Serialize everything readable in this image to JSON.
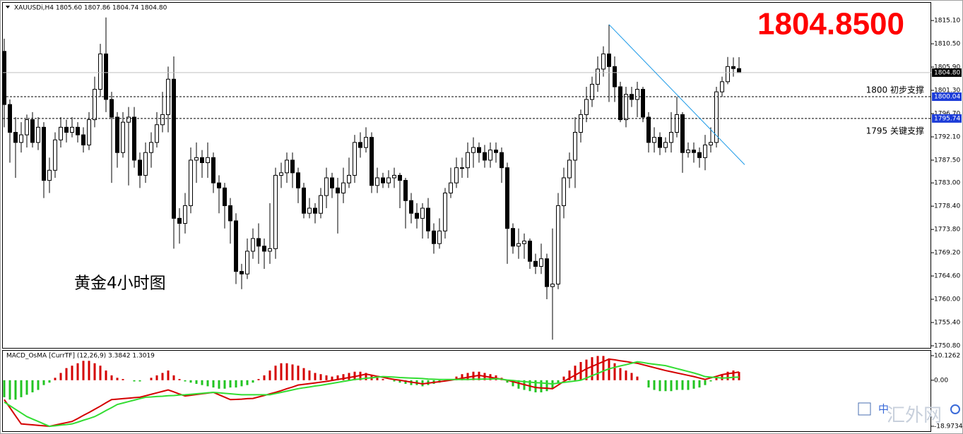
{
  "chart_data": [
    {
      "type": "candlestick",
      "title": "XAUUSDi,H4  1805.60 1807.86 1804.74 1804.80",
      "price_label": "1804.8500",
      "caption": "黄金4小时图",
      "up_color": "#ffffff",
      "down_color": "#000000",
      "ylim": [
        1750.38,
        1818.74
      ],
      "yticks": [
        {
          "value": 1815.1,
          "label": "1815.10"
        },
        {
          "value": 1810.5,
          "label": "1810.50"
        },
        {
          "value": 1805.9,
          "label": "1805.90"
        },
        {
          "value": 1801.3,
          "label": "1801.30"
        },
        {
          "value": 1796.7,
          "label": "1796.70"
        },
        {
          "value": 1792.1,
          "label": "1792.10"
        },
        {
          "value": 1787.5,
          "label": "1787.50"
        },
        {
          "value": 1783,
          "label": "1783.00"
        },
        {
          "value": 1778.4,
          "label": "1778.40"
        },
        {
          "value": 1773.8,
          "label": "1773.80"
        },
        {
          "value": 1769.2,
          "label": "1769.20"
        },
        {
          "value": 1764.6,
          "label": "1764.60"
        },
        {
          "value": 1760,
          "label": "1760.00"
        },
        {
          "value": 1755.4,
          "label": "1755.40"
        },
        {
          "value": 1750.8,
          "label": "1750.80"
        }
      ],
      "levels": [
        {
          "value": 1804.8,
          "label": "1804.80",
          "style": "solid",
          "color": "#c0c0c0",
          "box": "#000000"
        },
        {
          "value": 1800.04,
          "label": "1800.04",
          "style": "dashed",
          "color": "#000000",
          "box": "#1c3cd8",
          "text": "1800 初步支撑"
        },
        {
          "value": 1795.74,
          "label": "1795.74",
          "style": "dashed",
          "color": "#000000",
          "box": "#1c3cd8",
          "text": "1795 关键支撑"
        }
      ],
      "trendline": {
        "x": [
          107,
          131
        ],
        "y": [
          1814.3,
          1786.6
        ],
        "color": "#1e9be8"
      },
      "open": [
        1809.0,
        1798.5,
        1793.0,
        1791.0,
        1792.5,
        1795.5,
        1791.0,
        1794.0,
        1783.5,
        1785.5,
        1791.5,
        1794.0,
        1793.0,
        1794.0,
        1792.5,
        1790.5,
        1795.5,
        1801.5,
        1808.5,
        1799.5,
        1796.0,
        1789.0,
        1795.0,
        1796.0,
        1787.5,
        1784.5,
        1789.0,
        1791.0,
        1794.5,
        1796.5,
        1803.5,
        1776.0,
        1775.0,
        1778.5,
        1787.5,
        1788.0,
        1787.0,
        1788.0,
        1783.0,
        1782.0,
        1778.5,
        1775.5,
        1765.5,
        1765.0,
        1769.5,
        1772.0,
        1770.5,
        1769.5,
        1770.0,
        1784.5,
        1785.0,
        1787.5,
        1785.0,
        1782.0,
        1777.0,
        1778.0,
        1777.0,
        1780.5,
        1784.0,
        1782.0,
        1781.0,
        1783.0,
        1784.5,
        1791.0,
        1790.0,
        1792.0,
        1782.5,
        1784.0,
        1783.0,
        1784.0,
        1784.5,
        1783.5,
        1779.5,
        1777.0,
        1776.0,
        1778.0,
        1773.5,
        1771.0,
        1773.5,
        1781.0,
        1783.0,
        1786.0,
        1786.0,
        1789.0,
        1790.0,
        1789.0,
        1787.5,
        1789.5,
        1789.0,
        1786.0,
        1774.0,
        1770.5,
        1771.0,
        1771.5,
        1767.5,
        1766.5,
        1768.0,
        1762.5,
        1763.0,
        1778.5,
        1784.0,
        1787.5,
        1793.0,
        1796.5,
        1799.5,
        1802.5,
        1805.5,
        1808.5,
        1806.0,
        1802.0,
        1795.5,
        1800.5,
        1799.5,
        1801.5,
        1796.0,
        1791.0,
        1792.0,
        1790.0,
        1791.0,
        1793.0,
        1796.5,
        1789.0,
        1789.5,
        1789.0,
        1788.0,
        1790.5,
        1791.0,
        1801.0,
        1803.0,
        1806.0,
        1805.6
      ],
      "high": [
        1811.5,
        1799.5,
        1796,
        1795,
        1796.5,
        1797,
        1796,
        1795,
        1788,
        1793,
        1796,
        1795.5,
        1796,
        1795,
        1794,
        1797,
        1804,
        1810.5,
        1815.7,
        1801,
        1797,
        1797,
        1798,
        1798,
        1789,
        1791,
        1793,
        1797,
        1801,
        1806,
        1808,
        1778,
        1781,
        1790,
        1791,
        1789.5,
        1791,
        1789,
        1784.5,
        1783,
        1780,
        1777,
        1767,
        1772,
        1774,
        1775,
        1772,
        1779,
        1786,
        1787,
        1789,
        1789,
        1786,
        1783,
        1780,
        1779,
        1782,
        1786,
        1785,
        1784,
        1786,
        1788,
        1792.5,
        1793,
        1794,
        1793,
        1786,
        1785,
        1785.5,
        1786,
        1785,
        1784,
        1781,
        1779,
        1779,
        1780,
        1775,
        1776,
        1782,
        1786,
        1788,
        1788,
        1791,
        1792,
        1791,
        1790.5,
        1791,
        1791,
        1790,
        1787,
        1775,
        1774,
        1773,
        1772,
        1769,
        1771,
        1769,
        1774,
        1781,
        1786,
        1789,
        1796,
        1797.5,
        1802,
        1804,
        1808,
        1810,
        1814.3,
        1808,
        1803,
        1802,
        1802,
        1803,
        1802,
        1797,
        1794,
        1793,
        1792,
        1797,
        1800,
        1797,
        1791,
        1791,
        1790,
        1792.5,
        1794,
        1802,
        1804,
        1807.9,
        1807.8,
        1807.86
      ],
      "low": [
        1794,
        1787,
        1784,
        1789,
        1790,
        1790,
        1789.5,
        1780,
        1781,
        1784,
        1790,
        1791,
        1792,
        1791,
        1789,
        1789.5,
        1794,
        1800,
        1797,
        1783,
        1786,
        1788,
        1782.5,
        1786,
        1782,
        1783,
        1786,
        1790,
        1793,
        1793,
        1770,
        1771,
        1773,
        1777,
        1783,
        1784,
        1784,
        1781,
        1777,
        1774,
        1771,
        1763,
        1762,
        1764,
        1768,
        1767,
        1766,
        1767,
        1768,
        1782,
        1783,
        1782,
        1779,
        1776,
        1776,
        1775,
        1776,
        1778,
        1780,
        1773,
        1779,
        1782,
        1783,
        1788,
        1789,
        1781,
        1781,
        1782,
        1782,
        1782,
        1778,
        1774,
        1775,
        1774,
        1772,
        1772,
        1769,
        1770,
        1772,
        1780,
        1782,
        1784,
        1784,
        1786,
        1787,
        1786,
        1786,
        1787,
        1783,
        1767,
        1769,
        1768,
        1768,
        1766,
        1765,
        1765,
        1760,
        1752,
        1762,
        1776,
        1782,
        1782,
        1791,
        1795,
        1798,
        1801,
        1804,
        1799,
        1799,
        1795,
        1794,
        1798,
        1796,
        1795,
        1789,
        1789,
        1788.5,
        1789,
        1789,
        1792,
        1785,
        1788,
        1787,
        1786,
        1785.5,
        1789,
        1790,
        1800,
        1802.5,
        1804,
        1804.74
      ],
      "close": [
        1798.5,
        1793.0,
        1791.0,
        1792.5,
        1795.5,
        1791.0,
        1794.0,
        1783.5,
        1785.5,
        1791.5,
        1794.0,
        1793.0,
        1794.0,
        1792.5,
        1790.5,
        1795.5,
        1801.5,
        1808.5,
        1799.5,
        1796.0,
        1789.0,
        1795.0,
        1796.0,
        1787.5,
        1784.5,
        1789.0,
        1791.0,
        1794.5,
        1796.5,
        1803.5,
        1776.0,
        1775.0,
        1778.5,
        1787.5,
        1788.0,
        1787.0,
        1788.0,
        1783.0,
        1782.0,
        1778.5,
        1775.5,
        1765.5,
        1765.0,
        1769.5,
        1772.0,
        1770.5,
        1769.5,
        1770.0,
        1784.5,
        1785.0,
        1787.5,
        1785.0,
        1782.0,
        1777.0,
        1778.0,
        1777.0,
        1780.5,
        1784.0,
        1782.0,
        1781.0,
        1783.0,
        1784.5,
        1791.0,
        1790.0,
        1792.0,
        1782.5,
        1784.0,
        1783.0,
        1784.0,
        1784.5,
        1783.5,
        1779.5,
        1777.0,
        1776.0,
        1778.0,
        1773.5,
        1771.0,
        1773.5,
        1781.0,
        1783.0,
        1786.0,
        1786.0,
        1789.0,
        1790.0,
        1789.0,
        1787.5,
        1789.5,
        1789.0,
        1786.0,
        1774.0,
        1770.5,
        1771.0,
        1771.5,
        1767.5,
        1766.5,
        1768.0,
        1762.5,
        1763.0,
        1778.5,
        1784.0,
        1787.5,
        1793.0,
        1796.5,
        1799.5,
        1802.5,
        1805.5,
        1808.5,
        1806.0,
        1802.0,
        1795.5,
        1800.5,
        1799.5,
        1801.5,
        1796.0,
        1791.0,
        1792.0,
        1790.0,
        1791.0,
        1793.0,
        1796.5,
        1789.0,
        1789.5,
        1789.0,
        1788.0,
        1790.5,
        1791.0,
        1801.0,
        1803.0,
        1806.0,
        1805.6,
        1804.8
      ]
    },
    {
      "type": "macd",
      "title": "MACD_OsMA [CurrTF] (12,26,9) 3.3842 1.3019",
      "ylim": [
        -21.3,
        12.45
      ],
      "yticks": [
        {
          "value": 10.1262,
          "label": "10.1262"
        },
        {
          "value": 0,
          "label": "0.00"
        },
        {
          "value": -18.9734,
          "label": "-18.9734"
        }
      ],
      "positive_color": "#d40000",
      "negative_color": "#22c422",
      "histogram": [
        -7,
        -8,
        -8,
        -7,
        -6,
        -5,
        -4,
        -2,
        -1,
        1,
        3,
        5,
        6,
        7,
        8,
        8,
        7,
        6,
        4,
        2,
        1,
        0.5,
        0,
        -0.5,
        -0.5,
        0,
        1,
        2,
        3,
        4,
        2,
        0.5,
        -0.5,
        -1,
        -1.5,
        -2,
        -2.5,
        -3,
        -3.5,
        -3.5,
        -3,
        -3,
        -2.5,
        -2,
        -1,
        0.5,
        2,
        4,
        6,
        7,
        7,
        6.5,
        6,
        5,
        4,
        3,
        2.5,
        2,
        1.5,
        2,
        2.5,
        3,
        3.5,
        3.5,
        3,
        2,
        1,
        0.5,
        0,
        -0.5,
        -1,
        -1.5,
        -2,
        -2,
        -2.5,
        -2,
        -1.5,
        -1,
        -0.5,
        0.5,
        1.5,
        2.5,
        3,
        3.5,
        3.5,
        3,
        2.5,
        2,
        1,
        -1,
        -2.5,
        -3.5,
        -4,
        -4.5,
        -5,
        -5,
        -4.5,
        -3.5,
        -1,
        1.5,
        4,
        6,
        7.5,
        8.5,
        9.5,
        10,
        10,
        9,
        7,
        5,
        4,
        3,
        1.5,
        0,
        -3,
        -4,
        -4.5,
        -4.5,
        -4.5,
        -4,
        -4,
        -4,
        -3.5,
        -3,
        -2,
        -0.5,
        1,
        2.5,
        3.5,
        4,
        3.4
      ],
      "series": [
        {
          "color": "#d40000",
          "values": [
            -8,
            -11.3,
            -14.7,
            -18,
            -18.2,
            -18.4,
            -18.6,
            -18.8,
            -19,
            -18.5,
            -18,
            -17.5,
            -17,
            -15.8,
            -14.5,
            -13.3,
            -12,
            -10.7,
            -9.3,
            -8,
            -7.8,
            -7.6,
            -7.4,
            -7.2,
            -7,
            -6.4,
            -5.8,
            -5.2,
            -4.6,
            -4,
            -4.8,
            -5.7,
            -6.5,
            -6.2,
            -5.9,
            -5.6,
            -5.3,
            -5,
            -6,
            -7,
            -8,
            -7.9,
            -7.8,
            -7.6,
            -7.5,
            -6.9,
            -6.3,
            -5.6,
            -5,
            -4.3,
            -3.5,
            -2.8,
            -2,
            -1.7,
            -1.4,
            -1.1,
            -0.8,
            -0.5,
            -0.1,
            0.3,
            0.7,
            1.1,
            1.5,
            2,
            2.5,
            2.1,
            1.6,
            1.2,
            0.7,
            0.3,
            0,
            -0.4,
            -0.8,
            -1.1,
            -1.5,
            -1.2,
            -0.9,
            -0.6,
            -0.3,
            0,
            0.4,
            0.8,
            1.2,
            1.6,
            2,
            1.6,
            1.2,
            0.8,
            0.4,
            0,
            -0.6,
            -1.2,
            -1.8,
            -2.4,
            -3,
            -3.2,
            -3.3,
            -3.5,
            -2,
            -0.5,
            0.8,
            2.1,
            3.4,
            4.7,
            5.7,
            6.7,
            7.7,
            8.7,
            8.4,
            8,
            7.7,
            7.3,
            7,
            6.4,
            5.8,
            5.2,
            4.6,
            4,
            3.5,
            3,
            2.5,
            2,
            1.5,
            0.9,
            0.3,
            1,
            1.6,
            2.3,
            2.7,
            3,
            3.3842
          ]
        },
        {
          "color": "#33dd33",
          "values": [
            -9,
            -10.5,
            -12,
            -13.5,
            -15,
            -16,
            -17,
            -18,
            -19,
            -18.8,
            -18.5,
            -18.3,
            -18,
            -17.3,
            -16.5,
            -15.8,
            -15,
            -13.8,
            -12.5,
            -11.3,
            -10,
            -9.4,
            -8.8,
            -8.2,
            -7.6,
            -7,
            -6.9,
            -6.7,
            -6.6,
            -6.4,
            -6.3,
            -6.1,
            -6,
            -5.8,
            -5.6,
            -5.4,
            -5.2,
            -5,
            -5.2,
            -5.4,
            -5.6,
            -5.8,
            -6,
            -6,
            -6,
            -6,
            -6,
            -6,
            -5.5,
            -5,
            -4.5,
            -4,
            -3.5,
            -3.1,
            -2.8,
            -2.4,
            -2.1,
            -1.7,
            -1.3,
            -0.9,
            -0.5,
            -0.1,
            0.3,
            0.5,
            0.8,
            1,
            1.3,
            1.5,
            1.4,
            1.3,
            1.1,
            1,
            0.9,
            0.8,
            0.7,
            0.5,
            0.4,
            0.3,
            0.3,
            0.3,
            0.3,
            0.3,
            0.3,
            0.4,
            0.4,
            0.5,
            0.5,
            0.6,
            0.4,
            0.1,
            -0.1,
            -0.4,
            -0.6,
            -0.8,
            -1,
            -1.1,
            -1.3,
            -1.5,
            -1.2,
            -0.9,
            -0.6,
            -0.3,
            0,
            0.9,
            1.9,
            2.8,
            3.8,
            4.7,
            5.3,
            5.9,
            6.4,
            7,
            7.6,
            7.3,
            6.9,
            6.6,
            6.3,
            6,
            5.4,
            4.8,
            4.2,
            3.6,
            3,
            2.3,
            1.5,
            1.3,
            1.1,
            0.9,
            1,
            1.2,
            1.3019
          ]
        }
      ]
    }
  ],
  "watermark": "汇外网",
  "icon_label": "中"
}
